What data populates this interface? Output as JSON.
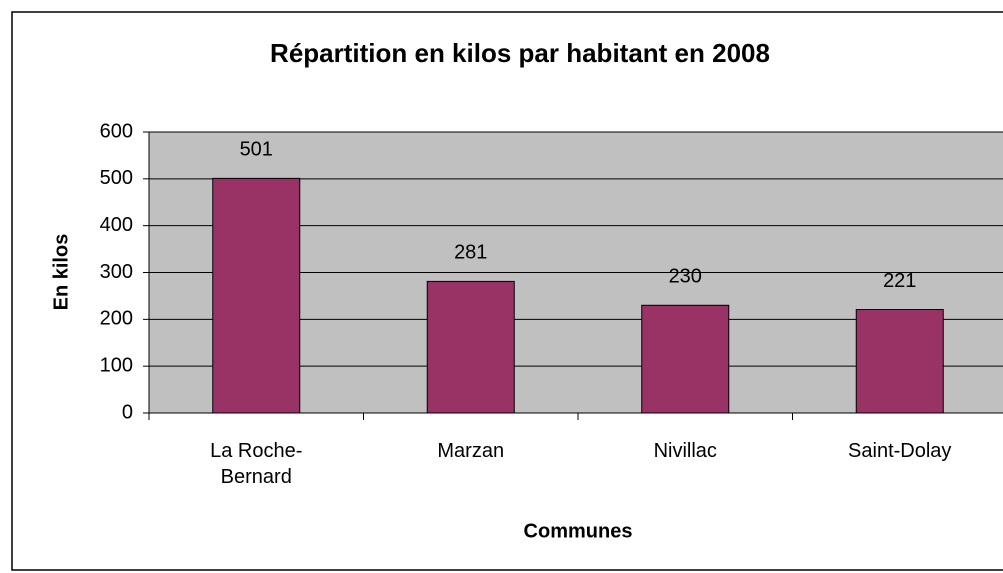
{
  "chart_data": {
    "type": "bar",
    "title": "Répartition en kilos par habitant en 2008",
    "x_label": "Communes",
    "y_label": "En kilos",
    "categories": [
      "La Roche-Bernard",
      "Marzan",
      "Nivillac",
      "Saint-Dolay"
    ],
    "values": [
      501,
      281,
      230,
      221
    ],
    "color": "#993366",
    "ylim": [
      0,
      600
    ],
    "yticks": [
      0,
      100,
      200,
      300,
      400,
      500,
      600
    ],
    "grid": true
  }
}
